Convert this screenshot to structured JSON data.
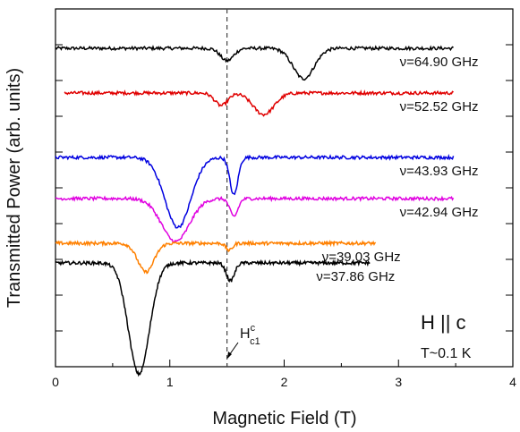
{
  "chart_data": {
    "type": "line",
    "xlabel": "Magnetic Field (T)",
    "ylabel": "Transmitted Power (arb. units)",
    "xlim": [
      0,
      4
    ],
    "x_ticks": [
      "0",
      "1",
      "2",
      "3",
      "4"
    ],
    "y_ticks_labeled": false,
    "grid": false,
    "reference_line": {
      "x": 1.5,
      "style": "dashed"
    },
    "annotations": {
      "field_symbol": "H",
      "field_sup": "c",
      "field_sub": "c1",
      "orientation": "H || c",
      "temperature": "T~0.1 K"
    },
    "series": [
      {
        "name": "ν=64.90 GHz",
        "color": "#000000",
        "x_range": [
          0.0,
          3.48
        ],
        "baseline": 8.9,
        "dips": [
          {
            "x": 1.5,
            "depth": 0.35,
            "width": 0.08
          },
          {
            "x": 2.17,
            "depth": 0.85,
            "width": 0.13
          }
        ]
      },
      {
        "name": "ν=52.52 GHz",
        "color": "#e00000",
        "x_range": [
          0.08,
          3.48
        ],
        "baseline": 7.65,
        "dips": [
          {
            "x": 1.45,
            "depth": 0.35,
            "width": 0.08
          },
          {
            "x": 1.82,
            "depth": 0.6,
            "width": 0.13
          }
        ]
      },
      {
        "name": "ν=43.93 GHz",
        "color": "#0000e0",
        "x_range": [
          0.0,
          3.48
        ],
        "baseline": 5.85,
        "dips": [
          {
            "x": 1.07,
            "depth": 1.95,
            "width": 0.16
          },
          {
            "x": 1.56,
            "depth": 1.05,
            "width": 0.05
          }
        ]
      },
      {
        "name": "ν=42.94 GHz",
        "color": "#e000e0",
        "x_range": [
          0.0,
          3.48
        ],
        "baseline": 4.7,
        "dips": [
          {
            "x": 1.05,
            "depth": 1.2,
            "width": 0.17
          },
          {
            "x": 1.56,
            "depth": 0.5,
            "width": 0.05
          }
        ]
      },
      {
        "name": "ν=39.03 GHz",
        "color": "#ff8000",
        "x_range": [
          0.0,
          2.8
        ],
        "baseline": 3.45,
        "dips": [
          {
            "x": 0.79,
            "depth": 0.8,
            "width": 0.1
          },
          {
            "x": 1.52,
            "depth": 0.2,
            "width": 0.04
          }
        ]
      },
      {
        "name": "ν=37.86 GHz",
        "color": "#000000",
        "x_range": [
          0.0,
          2.75
        ],
        "baseline": 2.9,
        "dips": [
          {
            "x": 0.73,
            "depth": 3.1,
            "width": 0.13
          },
          {
            "x": 1.53,
            "depth": 0.5,
            "width": 0.05
          }
        ]
      }
    ]
  }
}
